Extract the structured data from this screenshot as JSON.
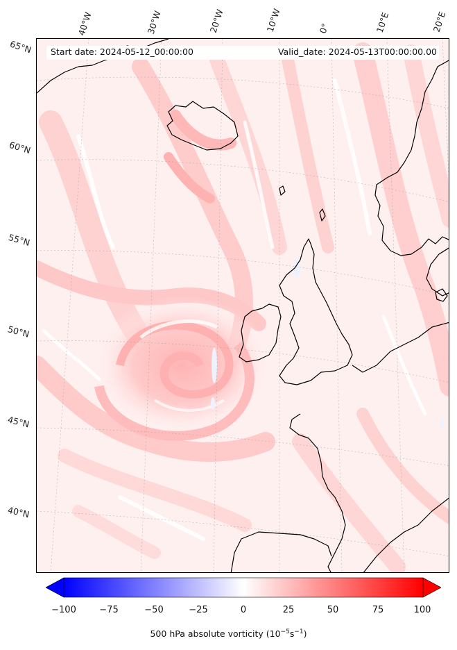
{
  "map": {
    "start_date": "Start date: 2024-05-12_00:00:00",
    "valid_date": "Valid_date: 2024-05-13T00:00:00.00",
    "longitude_labels": [
      "40°W",
      "30°W",
      "20°W",
      "10°W",
      "0°",
      "10°E",
      "20°E"
    ],
    "latitude_labels": [
      "65°N",
      "60°N",
      "55°N",
      "50°N",
      "45°N",
      "40°N"
    ],
    "field_colors": {
      "background": "#fff0f0",
      "light": "#ffdada",
      "medium": "#ffc4c4",
      "strong": "#ffa8a8",
      "min": "#f6f8ff",
      "coast": "#000000"
    }
  },
  "colorbar": {
    "ticks": [
      "−100",
      "−75",
      "−50",
      "−25",
      "0",
      "25",
      "50",
      "75",
      "100"
    ],
    "label_main": "500 hPa absolute vorticity (10",
    "label_exp1": "−5",
    "label_mid": "s",
    "label_exp2": "−1",
    "label_end": ")",
    "range": [
      -100,
      100
    ],
    "negative_color": "#0000ff",
    "neutral_color": "#ffffff",
    "positive_color": "#ff0000"
  }
}
